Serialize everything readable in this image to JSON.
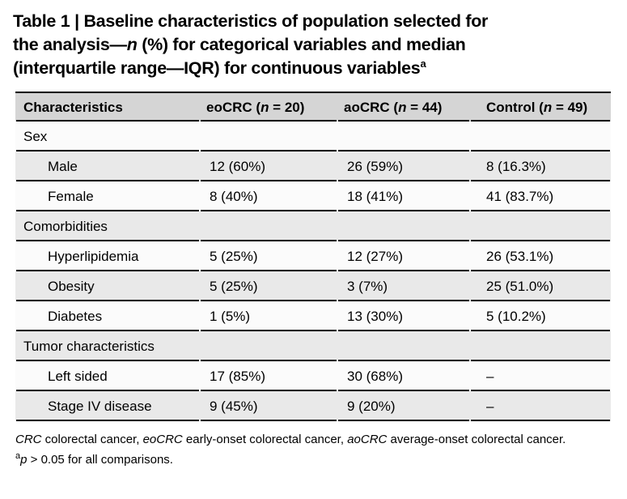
{
  "title": {
    "line1": "Table 1 | Baseline characteristics of population selected for",
    "line2_pre": "the analysis—",
    "line2_n": "n",
    "line2_post": " (%) for categorical variables and median",
    "line3": "(interquartile range—IQR) for continuous variables",
    "footnote_marker": "a"
  },
  "table": {
    "header": {
      "characteristics": "Characteristics",
      "eocrc": {
        "pre": "eoCRC (",
        "n": "n",
        "post": " = 20)"
      },
      "aocrc": {
        "pre": "aoCRC (",
        "n": "n",
        "post": " = 44)"
      },
      "control": {
        "pre": "Control (",
        "n": "n",
        "post": " = 49)"
      }
    },
    "rows": [
      {
        "type": "section",
        "label": "Sex",
        "values": [
          "",
          "",
          ""
        ]
      },
      {
        "type": "data",
        "label": "Male",
        "values": [
          "12 (60%)",
          "26 (59%)",
          "8 (16.3%)"
        ]
      },
      {
        "type": "data",
        "label": "Female",
        "values": [
          "8 (40%)",
          "18 (41%)",
          "41 (83.7%)"
        ]
      },
      {
        "type": "section",
        "label": "Comorbidities",
        "values": [
          "",
          "",
          ""
        ]
      },
      {
        "type": "data",
        "label": "Hyperlipidemia",
        "values": [
          "5 (25%)",
          "12 (27%)",
          "26 (53.1%)"
        ]
      },
      {
        "type": "data",
        "label": "Obesity",
        "values": [
          "5 (25%)",
          "3 (7%)",
          "25 (51.0%)"
        ]
      },
      {
        "type": "data",
        "label": "Diabetes",
        "values": [
          "1 (5%)",
          "13 (30%)",
          "5 (10.2%)"
        ]
      },
      {
        "type": "section",
        "label": "Tumor characteristics",
        "values": [
          "",
          "",
          ""
        ]
      },
      {
        "type": "data",
        "label": "Left sided",
        "values": [
          "17 (85%)",
          "30 (68%)",
          "–"
        ]
      },
      {
        "type": "data",
        "label": "Stage IV disease",
        "values": [
          "9 (45%)",
          "9 (20%)",
          "–"
        ]
      }
    ],
    "colors": {
      "header_bg": "#d5d5d5",
      "row_gray": "#e9e9e9",
      "row_white": "#fbfbfb",
      "rule": "#000000"
    }
  },
  "footnotes": {
    "abbreviations": [
      {
        "t": "CRC",
        "i": true
      },
      {
        "t": " colorectal cancer, ",
        "i": false
      },
      {
        "t": "eoCRC",
        "i": true
      },
      {
        "t": " early-onset colorectal cancer, ",
        "i": false
      },
      {
        "t": "aoCRC",
        "i": true
      },
      {
        "t": " average-onset colorectal cancer.",
        "i": false
      }
    ],
    "significance": {
      "marker": "a",
      "p": "p",
      "text": " > 0.05 for all comparisons."
    }
  }
}
